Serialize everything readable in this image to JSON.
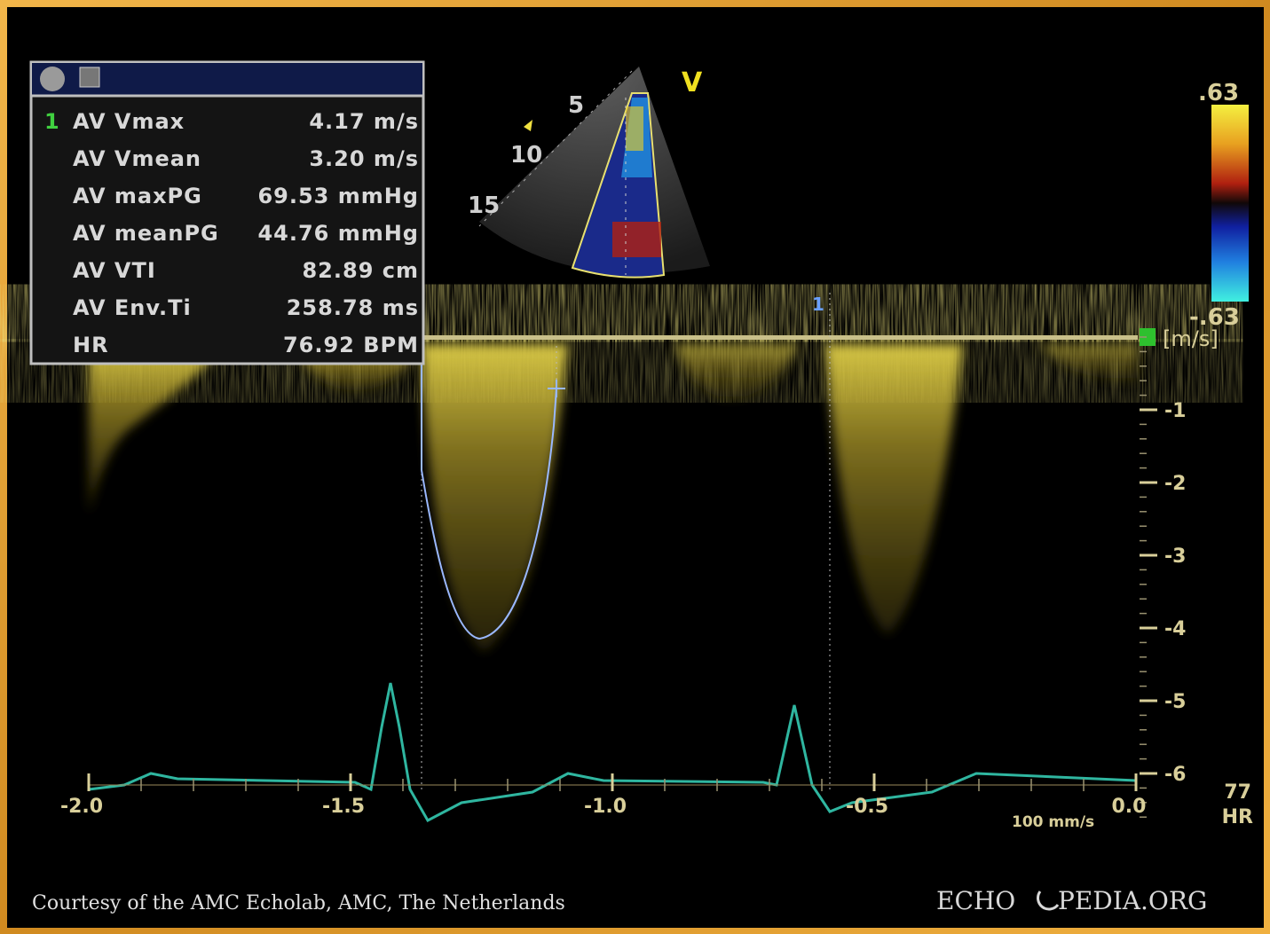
{
  "measurements": {
    "marker": "1",
    "rows": [
      {
        "label": "AV Vmax",
        "value": "4.17 m/s"
      },
      {
        "label": "AV Vmean",
        "value": "3.20 m/s"
      },
      {
        "label": "AV maxPG",
        "value": "69.53 mmHg"
      },
      {
        "label": "AV meanPG",
        "value": "44.76 mmHg"
      },
      {
        "label": "AV VTI",
        "value": "82.89 cm"
      },
      {
        "label": "AV Env.Ti",
        "value": "258.78 ms"
      },
      {
        "label": "HR",
        "value": "76.92 BPM"
      }
    ]
  },
  "image_view": {
    "mode": "V",
    "depth_labels": [
      "5",
      "10",
      "15"
    ]
  },
  "color_scale": {
    "max": ".63",
    "min": "-.63",
    "unit": "[m/s]"
  },
  "velocity_ticks": [
    "-1",
    "-2",
    "-3",
    "-4",
    "-5",
    "-6"
  ],
  "time_ticks": [
    "-2.0",
    "-1.5",
    "-1.0",
    "-0.5",
    "0.0"
  ],
  "cursor_label": "1",
  "sweep_speed": "100 mm/s",
  "heart_rate": {
    "value": "77",
    "label": "HR"
  },
  "footer": {
    "courtesy": "Courtesy of the AMC Echolab, AMC, The Netherlands",
    "logo_left": "ECHO",
    "logo_right": "PEDIA.ORG"
  }
}
